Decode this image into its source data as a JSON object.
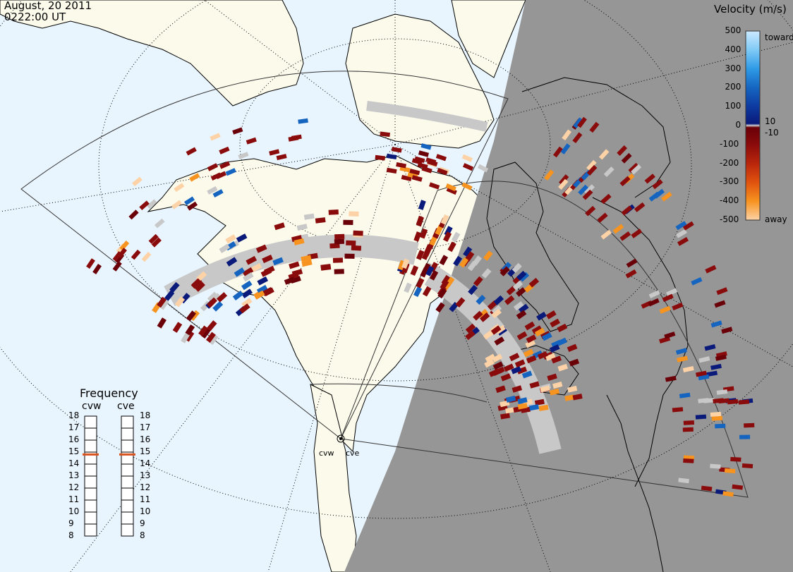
{
  "header": {
    "date": "August, 20 2011",
    "time": "0222:00 UT"
  },
  "colors": {
    "ocean": "#e9f5fe",
    "land_day": "#fbfaeb",
    "night_side": "#969696",
    "ground_scatter": "#c8c8c8",
    "coast": "#000000",
    "grid": "#000000"
  },
  "velocity_scale": {
    "title": "Velocity (m/s)",
    "toward_label": "toward",
    "away_label": "away",
    "ticks": [
      "500",
      "400",
      "300",
      "200",
      "100",
      "0",
      "-100",
      "-200",
      "-300",
      "-400",
      "-500"
    ],
    "inner_ticks": [
      "10",
      "-10"
    ],
    "gradient": [
      {
        "v": 500,
        "color": "#cce9ff"
      },
      {
        "v": 400,
        "color": "#7fcaf6"
      },
      {
        "v": 300,
        "color": "#2e9ae6"
      },
      {
        "v": 200,
        "color": "#1565c0"
      },
      {
        "v": 100,
        "color": "#0d3aa0"
      },
      {
        "v": 10,
        "color": "#0a1a7a"
      },
      {
        "v": 0,
        "color": "#d0d0d0"
      },
      {
        "v": -10,
        "color": "#6a0008"
      },
      {
        "v": -100,
        "color": "#8a0b0b"
      },
      {
        "v": -200,
        "color": "#b8260b"
      },
      {
        "v": -300,
        "color": "#e0520f"
      },
      {
        "v": -400,
        "color": "#f7931f"
      },
      {
        "v": -500,
        "color": "#fdd2a6"
      }
    ]
  },
  "frequency": {
    "title": "Frequency",
    "radars": [
      {
        "code": "cvw",
        "freq_mhz": 14.8
      },
      {
        "code": "cve",
        "freq_mhz": 14.8
      }
    ],
    "ticks": [
      "18",
      "17",
      "16",
      "15",
      "14",
      "13",
      "12",
      "11",
      "10",
      "9",
      "8"
    ],
    "marker_color": "#d9531e"
  },
  "radars": [
    {
      "code": "cvw"
    },
    {
      "code": "cve"
    }
  ]
}
